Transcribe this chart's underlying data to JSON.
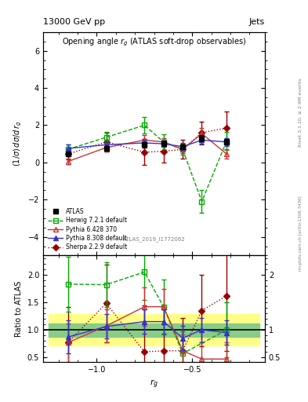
{
  "title_top": "13000 GeV pp",
  "title_right": "Jets",
  "plot_title": "Opening angle r_{g} (ATLAS soft-drop observables)",
  "ylabel_main": "(1/σ) dσ/d r_{g}",
  "ylabel_ratio": "Ratio to ATLAS",
  "xlabel": "r_{g}",
  "right_label": "Rivet 3.1.10, ≥ 2.9M events",
  "watermark": "ATLAS_2019_I1772062",
  "mcplots_label": "mcplots.cern.ch [arXiv:1306.3436]",
  "x": [
    -1.15,
    -0.95,
    -0.75,
    -0.65,
    -0.55,
    -0.45,
    -0.32,
    -0.22
  ],
  "atlas_y": [
    0.45,
    0.75,
    0.95,
    1.0,
    0.85,
    1.3,
    1.1,
    1.1
  ],
  "atlas_yerr": [
    0.07,
    0.12,
    0.15,
    0.12,
    0.1,
    0.18,
    0.15,
    0.15
  ],
  "herwig_y": [
    0.7,
    1.35,
    2.0,
    1.1,
    0.7,
    -2.1,
    1.15,
    999
  ],
  "herwig_yerr": [
    0.25,
    0.3,
    0.45,
    0.4,
    0.3,
    0.6,
    0.5,
    0.0
  ],
  "pythia6_y": [
    0.05,
    0.8,
    1.2,
    1.1,
    0.7,
    1.55,
    0.45,
    999
  ],
  "pythia6_yerr": [
    0.15,
    0.2,
    0.25,
    0.2,
    0.2,
    0.3,
    0.25,
    0.0
  ],
  "pythia8_y": [
    0.75,
    0.95,
    1.05,
    1.0,
    0.85,
    1.2,
    1.1,
    999
  ],
  "pythia8_yerr": [
    0.2,
    0.18,
    0.18,
    0.18,
    0.18,
    0.22,
    0.2,
    0.0
  ],
  "sherpa_y": [
    0.45,
    1.1,
    0.55,
    0.6,
    0.7,
    1.6,
    1.85,
    999
  ],
  "sherpa_yerr": [
    0.3,
    0.5,
    0.7,
    0.6,
    0.5,
    0.6,
    0.9,
    0.0
  ],
  "ratio_herwig": [
    1.83,
    1.82,
    2.05,
    1.42,
    0.57,
    -999,
    1.0,
    999
  ],
  "ratio_herwig_err": [
    0.5,
    0.4,
    0.5,
    0.5,
    0.4,
    0.0,
    0.5,
    0.0
  ],
  "ratio_pythia6": [
    0.77,
    1.07,
    1.42,
    1.42,
    0.62,
    0.47,
    0.47,
    999
  ],
  "ratio_pythia6_err": [
    0.35,
    0.3,
    0.35,
    0.32,
    0.3,
    0.3,
    0.3,
    0.0
  ],
  "ratio_pythia8": [
    0.87,
    1.06,
    1.15,
    1.15,
    0.85,
    1.0,
    0.95,
    999
  ],
  "ratio_pythia8_err": [
    0.3,
    0.22,
    0.22,
    0.22,
    0.22,
    0.22,
    0.22,
    0.0
  ],
  "ratio_sherpa": [
    0.77,
    1.48,
    0.6,
    0.62,
    0.62,
    1.35,
    1.62,
    999
  ],
  "ratio_sherpa_err": [
    0.65,
    0.7,
    0.85,
    0.75,
    0.6,
    0.65,
    1.0,
    0.0
  ],
  "band_x_edges": [
    -1.25,
    -1.05,
    -0.85,
    -0.7,
    -0.6,
    -0.5,
    -0.38,
    -0.27,
    -0.15
  ],
  "band_inner": 0.12,
  "band_outer": 0.28,
  "color_atlas": "#000000",
  "color_herwig": "#00aa00",
  "color_pythia6": "#cc3333",
  "color_pythia8": "#3333cc",
  "color_sherpa": "#990000",
  "ylim_main": [
    -5.0,
    7.0
  ],
  "ylim_ratio": [
    0.42,
    2.35
  ],
  "xlim": [
    -1.28,
    -0.12
  ]
}
